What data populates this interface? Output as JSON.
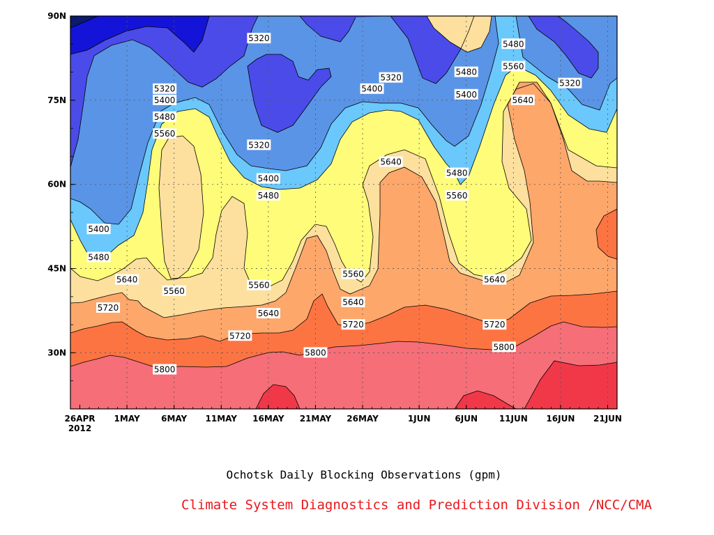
{
  "chart_data": {
    "type": "heatmap",
    "title": "Ochotsk Daily Blocking Observations (gpm)",
    "credit": "Climate System Diagnostics and Prediction Division /NCC/CMA",
    "x_tick_labels": [
      "26APR",
      "1MAY",
      "6MAY",
      "11MAY",
      "16MAY",
      "21MAY",
      "26MAY",
      "1JUN",
      "6JUN",
      "11JUN",
      "16JUN",
      "21JUN"
    ],
    "x_year_label": "2012",
    "y_tick_labels": [
      "90N",
      "75N",
      "60N",
      "45N",
      "30N"
    ],
    "xlim": [
      "2012-04-25",
      "2012-06-22"
    ],
    "ylim": [
      20,
      90
    ],
    "grid": true,
    "contour_levels": [
      5240,
      5320,
      5400,
      5480,
      5560,
      5640,
      5720,
      5800,
      5880
    ],
    "fill_colors": [
      "#0b1b70",
      "#1414d8",
      "#4b4bea",
      "#5a94e6",
      "#6ac8fc",
      "#fefc78",
      "#fde09e",
      "#fea76a",
      "#fd7443",
      "#f56e78",
      "#f03849"
    ],
    "contour_labels": [
      {
        "text": "5320",
        "date": "2012-05-05",
        "lat": 77
      },
      {
        "text": "5400",
        "date": "2012-05-05",
        "lat": 75
      },
      {
        "text": "5480",
        "date": "2012-05-05",
        "lat": 72
      },
      {
        "text": "5560",
        "date": "2012-05-05",
        "lat": 69
      },
      {
        "text": "5320",
        "date": "2012-05-15",
        "lat": 86
      },
      {
        "text": "5320",
        "date": "2012-05-15",
        "lat": 67
      },
      {
        "text": "5400",
        "date": "2012-05-16",
        "lat": 61
      },
      {
        "text": "5480",
        "date": "2012-05-16",
        "lat": 58
      },
      {
        "text": "5320",
        "date": "2012-05-29",
        "lat": 79
      },
      {
        "text": "5400",
        "date": "2012-05-27",
        "lat": 77
      },
      {
        "text": "5640",
        "date": "2012-05-29",
        "lat": 64
      },
      {
        "text": "5480",
        "date": "2012-06-06",
        "lat": 80
      },
      {
        "text": "5400",
        "date": "2012-06-06",
        "lat": 76
      },
      {
        "text": "5480",
        "date": "2012-06-05",
        "lat": 62
      },
      {
        "text": "5560",
        "date": "2012-06-05",
        "lat": 58
      },
      {
        "text": "5480",
        "date": "2012-06-11",
        "lat": 85
      },
      {
        "text": "5560",
        "date": "2012-06-11",
        "lat": 81
      },
      {
        "text": "5640",
        "date": "2012-06-12",
        "lat": 75
      },
      {
        "text": "5320",
        "date": "2012-06-17",
        "lat": 78
      },
      {
        "text": "5400",
        "date": "2012-04-28",
        "lat": 52
      },
      {
        "text": "5480",
        "date": "2012-04-28",
        "lat": 47
      },
      {
        "text": "5640",
        "date": "2012-05-01",
        "lat": 43
      },
      {
        "text": "5720",
        "date": "2012-04-29",
        "lat": 38
      },
      {
        "text": "5560",
        "date": "2012-05-06",
        "lat": 41
      },
      {
        "text": "5560",
        "date": "2012-05-15",
        "lat": 42
      },
      {
        "text": "5640",
        "date": "2012-05-16",
        "lat": 37
      },
      {
        "text": "5720",
        "date": "2012-05-13",
        "lat": 33
      },
      {
        "text": "5800",
        "date": "2012-05-05",
        "lat": 27
      },
      {
        "text": "5800",
        "date": "2012-05-21",
        "lat": 30
      },
      {
        "text": "5560",
        "date": "2012-05-25",
        "lat": 44
      },
      {
        "text": "5640",
        "date": "2012-05-25",
        "lat": 39
      },
      {
        "text": "5720",
        "date": "2012-05-25",
        "lat": 35
      },
      {
        "text": "5640",
        "date": "2012-06-09",
        "lat": 43
      },
      {
        "text": "5720",
        "date": "2012-06-09",
        "lat": 35
      },
      {
        "text": "5800",
        "date": "2012-06-10",
        "lat": 31
      }
    ]
  }
}
